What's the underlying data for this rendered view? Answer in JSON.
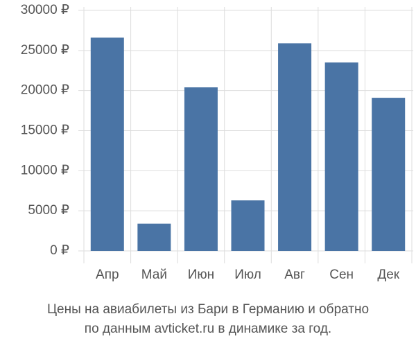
{
  "chart_data": {
    "type": "bar",
    "title": [
      "Цены на авиабилеты из Бари в Германию и обратно",
      "по данным avticket.ru в динамике за год."
    ],
    "categories": [
      "Апр",
      "Май",
      "Июн",
      "Июл",
      "Авг",
      "Сен",
      "Дек"
    ],
    "values": [
      26600,
      3400,
      20400,
      6300,
      25900,
      23500,
      19100
    ],
    "color": "#4a74a5",
    "ylim": [
      0,
      30000
    ],
    "yticks": [
      {
        "value": 0,
        "label": "0 ₽"
      },
      {
        "value": 5000,
        "label": "5000 ₽"
      },
      {
        "value": 10000,
        "label": "10000 ₽"
      },
      {
        "value": 15000,
        "label": "15000 ₽"
      },
      {
        "value": 20000,
        "label": "20000 ₽"
      },
      {
        "value": 25000,
        "label": "25000 ₽"
      },
      {
        "value": 30000,
        "label": "30000 ₽"
      }
    ],
    "grid": true
  }
}
